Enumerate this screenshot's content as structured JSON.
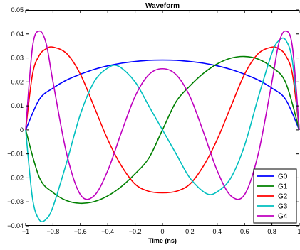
{
  "chart_data": {
    "type": "line",
    "title": "Waveform",
    "xlabel": "Time (ns)",
    "ylabel": "",
    "xlim": [
      -1,
      1
    ],
    "ylim": [
      -0.04,
      0.05
    ],
    "xticks": [
      -1,
      -0.8,
      -0.6,
      -0.4,
      -0.2,
      0,
      0.2,
      0.4,
      0.6,
      0.8,
      1
    ],
    "xtick_labels": [
      "−1",
      "−0.8",
      "−0.6",
      "−0.4",
      "−0.2",
      "0",
      "0.2",
      "0.4",
      "0.6",
      "0.8",
      "1"
    ],
    "yticks": [
      -0.04,
      -0.03,
      -0.02,
      -0.01,
      0,
      0.01,
      0.02,
      0.03,
      0.04,
      0.05
    ],
    "ytick_labels": [
      "−0.04",
      "−0.03",
      "−0.02",
      "−0.01",
      "0",
      "0.01",
      "0.02",
      "0.03",
      "0.04",
      "0.05"
    ],
    "grid": false,
    "legend_position": "lower-right",
    "series": [
      {
        "name": "G0",
        "color": "#0000ff",
        "x": [
          -1,
          -0.9,
          -0.8,
          -0.7,
          -0.6,
          -0.5,
          -0.4,
          -0.3,
          -0.2,
          -0.1,
          0,
          0.1,
          0.2,
          0.3,
          0.4,
          0.5,
          0.6,
          0.7,
          0.8,
          0.9,
          1
        ],
        "y": [
          0,
          0.0127,
          0.0174,
          0.0208,
          0.0232,
          0.0252,
          0.0267,
          0.0278,
          0.0285,
          0.029,
          0.0291,
          0.029,
          0.0285,
          0.0278,
          0.0267,
          0.0252,
          0.0232,
          0.0208,
          0.0174,
          0.0127,
          0
        ]
      },
      {
        "name": "G1",
        "color": "#008000",
        "x": [
          -1,
          -0.9,
          -0.8,
          -0.7,
          -0.6,
          -0.5,
          -0.4,
          -0.3,
          -0.2,
          -0.1,
          0,
          0.1,
          0.2,
          0.3,
          0.4,
          0.5,
          0.6,
          0.7,
          0.8,
          0.9,
          1
        ],
        "y": [
          0,
          -0.0198,
          -0.0261,
          -0.0295,
          -0.0306,
          -0.0299,
          -0.0275,
          -0.0236,
          -0.0183,
          -0.0118,
          0,
          0.0118,
          0.0183,
          0.0236,
          0.0275,
          0.0299,
          0.0306,
          0.0295,
          0.0261,
          0.0198,
          0
        ]
      },
      {
        "name": "G2",
        "color": "#ff0000",
        "x": [
          -1,
          -0.95,
          -0.9,
          -0.85,
          -0.8,
          -0.7,
          -0.6,
          -0.5,
          -0.4,
          -0.3,
          -0.2,
          -0.1,
          0,
          0.1,
          0.2,
          0.3,
          0.4,
          0.5,
          0.6,
          0.7,
          0.8,
          0.85,
          0.9,
          0.95,
          1
        ],
        "y": [
          0,
          0.0232,
          0.0311,
          0.0338,
          0.0345,
          0.0318,
          0.0232,
          0.0097,
          -0.004,
          -0.015,
          -0.0226,
          -0.0256,
          -0.0262,
          -0.0256,
          -0.0226,
          -0.015,
          -0.004,
          0.0097,
          0.0232,
          0.0318,
          0.0345,
          0.0338,
          0.0311,
          0.0232,
          0
        ]
      },
      {
        "name": "G3",
        "color": "#00bfbf",
        "x": [
          -1,
          -0.95,
          -0.9,
          -0.85,
          -0.8,
          -0.7,
          -0.6,
          -0.5,
          -0.4,
          -0.32,
          -0.2,
          -0.1,
          0,
          0.1,
          0.2,
          0.32,
          0.4,
          0.5,
          0.6,
          0.7,
          0.8,
          0.85,
          0.9,
          0.95,
          1
        ],
        "y": [
          0,
          -0.0285,
          -0.0375,
          -0.0372,
          -0.032,
          -0.0135,
          0.0065,
          0.02,
          0.0258,
          0.0265,
          0.02,
          0.01,
          0,
          -0.01,
          -0.02,
          -0.0265,
          -0.0258,
          -0.02,
          -0.0065,
          0.0135,
          0.032,
          0.0372,
          0.0375,
          0.0285,
          0
        ]
      },
      {
        "name": "G4",
        "color": "#bf00bf",
        "x": [
          -1,
          -0.95,
          -0.9,
          -0.85,
          -0.8,
          -0.7,
          -0.6,
          -0.5,
          -0.4,
          -0.3,
          -0.2,
          -0.1,
          0,
          0.1,
          0.2,
          0.3,
          0.4,
          0.5,
          0.6,
          0.7,
          0.8,
          0.85,
          0.9,
          0.95,
          1
        ],
        "y": [
          0,
          0.0345,
          0.0412,
          0.036,
          0.02,
          -0.01,
          -0.027,
          -0.0275,
          -0.017,
          -0.001,
          0.014,
          0.023,
          0.0255,
          0.023,
          0.014,
          -0.001,
          -0.017,
          -0.0275,
          -0.027,
          -0.01,
          0.02,
          0.036,
          0.0412,
          0.0345,
          0
        ]
      }
    ]
  }
}
